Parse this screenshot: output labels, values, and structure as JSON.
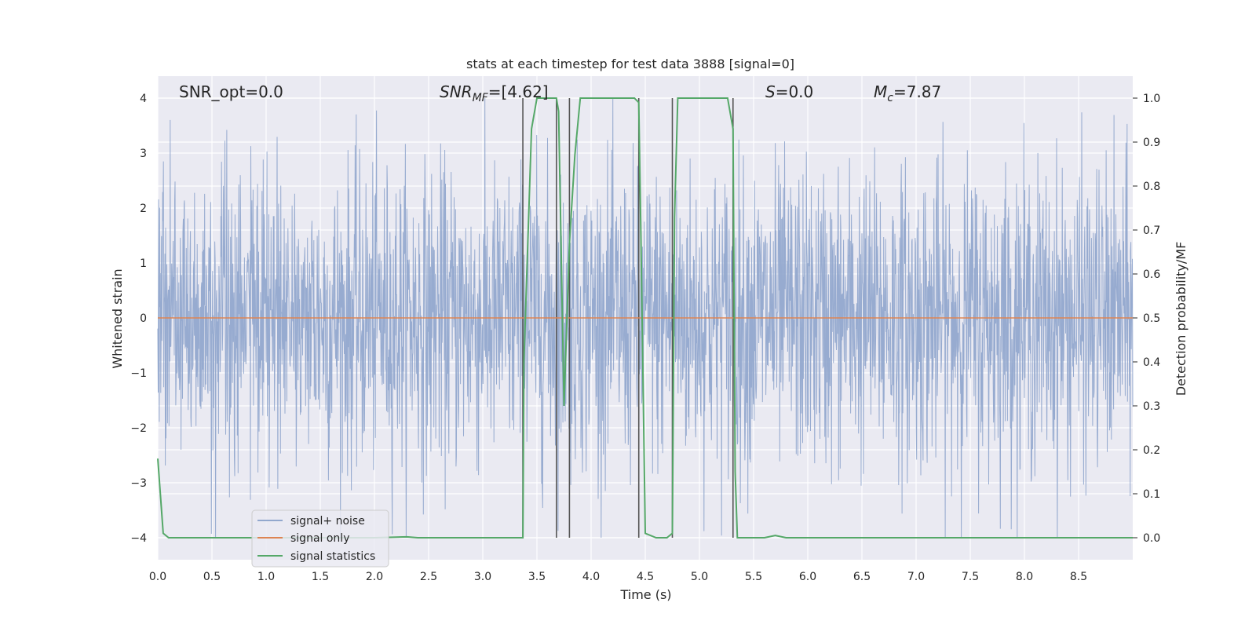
{
  "chart_data": {
    "type": "line",
    "title": "stats at each timestep for test data 3888 [signal=0]",
    "xlabel": "Time (s)",
    "ylabel_left": "Whitened strain",
    "ylabel_right": "Detection probability/MF",
    "xlim": [
      0.0,
      9.0
    ],
    "ylim_left": [
      -4.4,
      4.4
    ],
    "ylim_right": [
      -0.05,
      1.05
    ],
    "x_ticks": [
      "0.0",
      "0.5",
      "1.0",
      "1.5",
      "2.0",
      "2.5",
      "3.0",
      "3.5",
      "4.0",
      "4.5",
      "5.0",
      "5.5",
      "6.0",
      "6.5",
      "7.0",
      "7.5",
      "8.0",
      "8.5"
    ],
    "y_ticks_left": [
      "4",
      "3",
      "2",
      "1",
      "0",
      "−1",
      "−2",
      "−3",
      "−4"
    ],
    "y_ticks_right": [
      "1.0",
      "0.9",
      "0.8",
      "0.7",
      "0.6",
      "0.5",
      "0.4",
      "0.3",
      "0.2",
      "0.1",
      "0.0"
    ],
    "grid": true,
    "legend_position": "lower-left",
    "annotations": {
      "snr_opt": "SNR_opt=0.0",
      "snr_mf": "=[4.62]",
      "s_stat": "=0.0",
      "mc": "=7.87"
    },
    "series": [
      {
        "name": "signal+ noise",
        "color": "#92a8cd",
        "axis": "left",
        "description": "whitened noise strain, roughly gaussian",
        "envelope": {
          "typical_abs": 1.6,
          "peak_abs": 4.0
        }
      },
      {
        "name": "signal only",
        "color": "#dd8452",
        "axis": "left",
        "x": [
          0.0,
          9.0
        ],
        "y": [
          0.0,
          0.0
        ]
      },
      {
        "name": "signal statistics",
        "color": "#55a868",
        "axis": "right",
        "x": [
          0.0,
          0.05,
          0.1,
          0.15,
          0.3,
          2.0,
          2.3,
          2.4,
          3.37,
          3.38,
          3.45,
          3.5,
          3.68,
          3.7,
          3.75,
          3.8,
          3.85,
          3.9,
          4.4,
          4.44,
          4.46,
          4.5,
          4.6,
          4.7,
          4.75,
          4.77,
          4.8,
          4.82,
          5.26,
          5.31,
          5.33,
          5.35,
          5.6,
          5.7,
          5.8,
          9.0
        ],
        "y": [
          0.18,
          0.01,
          0.0,
          0.0,
          0.0,
          0.0,
          0.002,
          0.0,
          0.0,
          0.4,
          0.93,
          1.0,
          1.0,
          0.97,
          0.3,
          0.67,
          0.87,
          1.0,
          1.0,
          0.99,
          0.68,
          0.01,
          0.0,
          0.0,
          0.01,
          0.73,
          1.0,
          1.0,
          1.0,
          0.93,
          0.15,
          0.0,
          0.0,
          0.005,
          0.0,
          0.0
        ]
      }
    ],
    "vertical_markers": {
      "color": "#555555",
      "x": [
        3.37,
        3.68,
        3.8,
        4.44,
        4.75,
        5.31
      ]
    }
  }
}
